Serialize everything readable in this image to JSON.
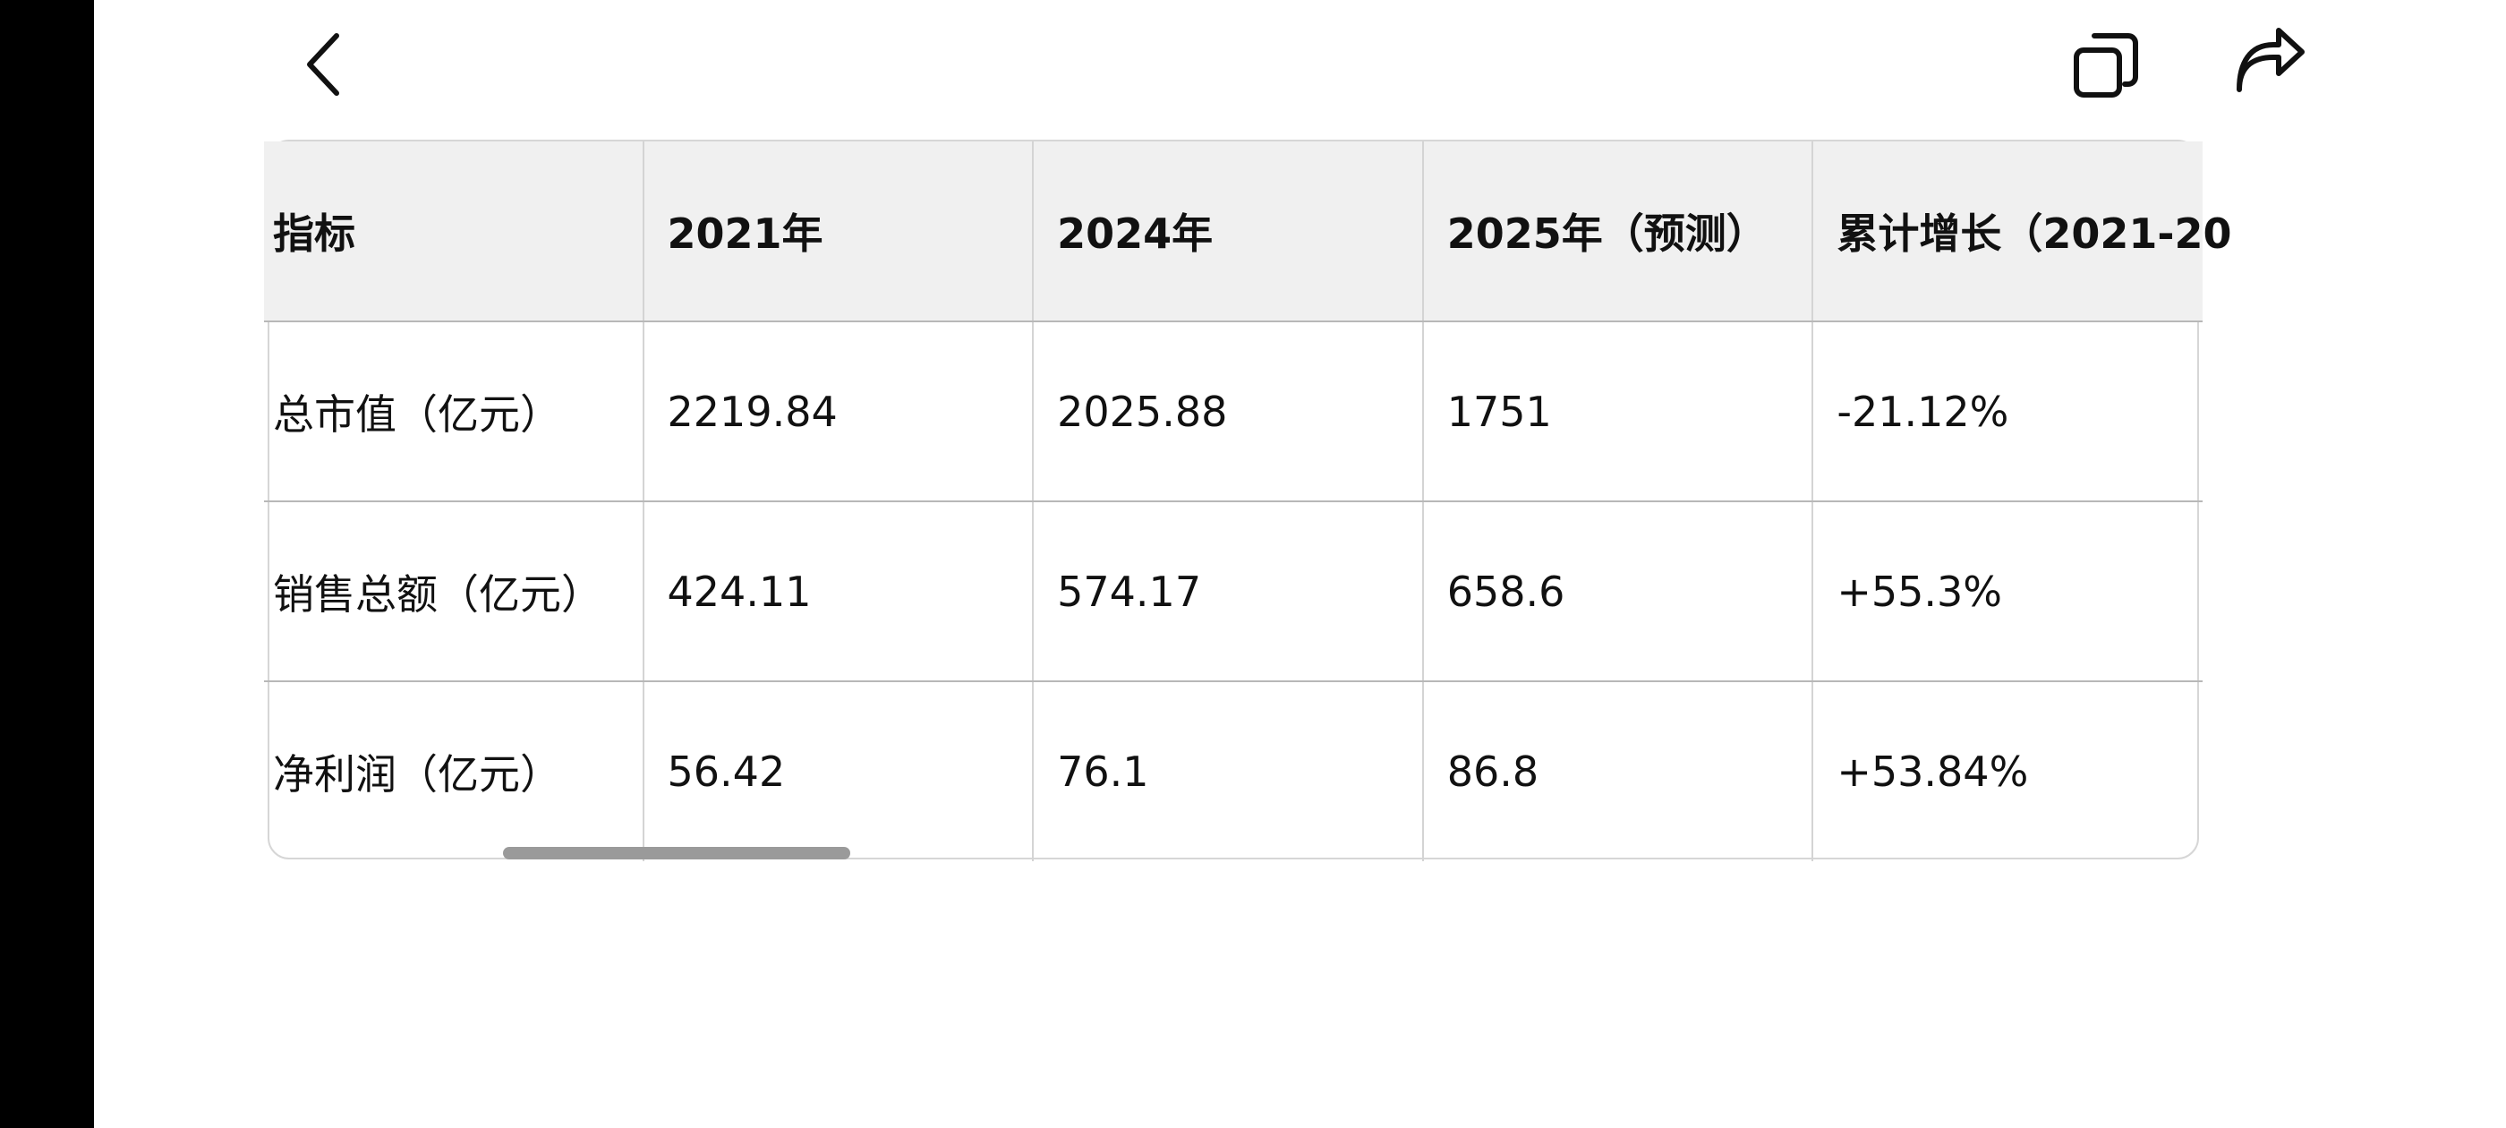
{
  "icons": {
    "back": "chevron-left-icon",
    "copy": "copy-icon",
    "share": "share-forward-icon"
  },
  "table": {
    "columns": [
      "指标",
      "2021年",
      "2024年",
      "2025年（预测）",
      "累计增长（2021-20"
    ],
    "rows": [
      [
        "总市值（亿元）",
        "2219.84",
        "2025.88",
        "1751",
        "-21.12%"
      ],
      [
        "销售总额（亿元）",
        "424.11",
        "574.17",
        "658.6",
        "+55.3%"
      ],
      [
        "净利润（亿元）",
        "56.42",
        "76.1",
        "86.8",
        "+53.84%"
      ]
    ]
  },
  "colors": {
    "left_bar": "#000000",
    "header_bg": "#f0f0f0",
    "border": "#d6d6d6",
    "scrollbar": "#9a9a9a"
  }
}
